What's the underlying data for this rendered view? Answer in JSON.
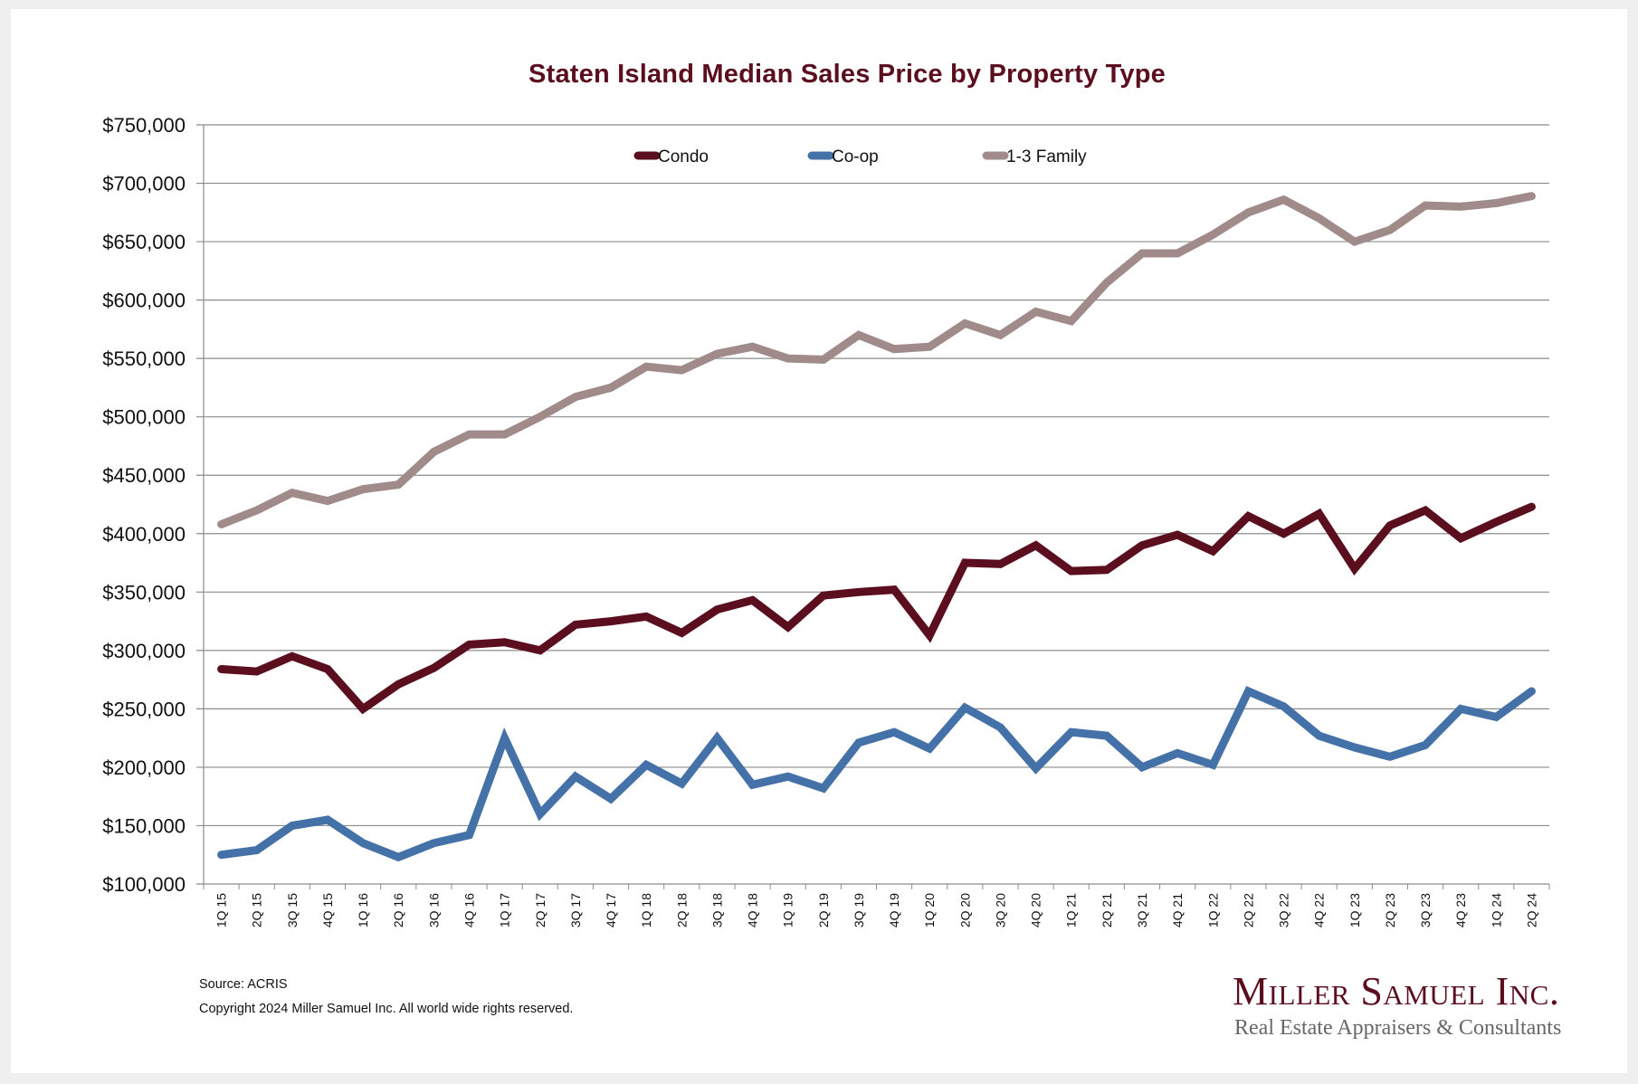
{
  "chart_data": {
    "type": "line",
    "title": "Staten Island Median Sales Price by Property Type",
    "xlabel": "",
    "ylabel": "",
    "ylim": [
      100000,
      750000
    ],
    "y_ticks": [
      100000,
      150000,
      200000,
      250000,
      300000,
      350000,
      400000,
      450000,
      500000,
      550000,
      600000,
      650000,
      700000,
      750000
    ],
    "y_tick_labels": [
      "$100,000",
      "$150,000",
      "$200,000",
      "$250,000",
      "$300,000",
      "$350,000",
      "$400,000",
      "$450,000",
      "$500,000",
      "$550,000",
      "$600,000",
      "$650,000",
      "$700,000",
      "$750,000"
    ],
    "grid": true,
    "legend_position": "top-center",
    "categories": [
      "1Q 15",
      "2Q 15",
      "3Q 15",
      "4Q 15",
      "1Q 16",
      "2Q 16",
      "3Q 16",
      "4Q 16",
      "1Q 17",
      "2Q 17",
      "3Q 17",
      "4Q 17",
      "1Q 18",
      "2Q 18",
      "3Q 18",
      "4Q 18",
      "1Q 19",
      "2Q 19",
      "3Q 19",
      "4Q 19",
      "1Q 20",
      "2Q 20",
      "3Q 20",
      "4Q 20",
      "1Q 21",
      "2Q 21",
      "3Q 21",
      "4Q 21",
      "1Q 22",
      "2Q 22",
      "3Q 22",
      "4Q 22",
      "1Q 23",
      "2Q 23",
      "3Q 23",
      "4Q 23",
      "1Q 24",
      "2Q 24"
    ],
    "series": [
      {
        "name": "Condo",
        "color": "#5b0f1e",
        "values": [
          284000,
          282000,
          295000,
          284000,
          250000,
          271000,
          285000,
          305000,
          307000,
          300000,
          322000,
          325000,
          329000,
          315000,
          335000,
          343000,
          320000,
          347000,
          350000,
          352000,
          313000,
          375000,
          374000,
          390000,
          368000,
          369000,
          390000,
          399000,
          385000,
          415000,
          400000,
          417000,
          370000,
          407000,
          420000,
          396000,
          410000,
          423000
        ]
      },
      {
        "name": "Co-op",
        "color": "#4472a8",
        "values": [
          125000,
          129000,
          150000,
          155000,
          135000,
          123000,
          135000,
          142000,
          225000,
          160000,
          192000,
          173000,
          202000,
          186000,
          225000,
          185000,
          192000,
          182000,
          221000,
          230000,
          216000,
          251000,
          234000,
          199000,
          230000,
          227000,
          200000,
          212000,
          202000,
          265000,
          252000,
          227000,
          217000,
          209000,
          219000,
          250000,
          243000,
          265000
        ]
      },
      {
        "name": "1-3 Family",
        "color": "#a08a8a",
        "values": [
          408000,
          420000,
          435000,
          428000,
          438000,
          442000,
          470000,
          485000,
          485000,
          500000,
          517000,
          525000,
          543000,
          540000,
          554000,
          560000,
          550000,
          549000,
          570000,
          558000,
          560000,
          580000,
          570000,
          590000,
          582000,
          615000,
          640000,
          640000,
          656000,
          675000,
          686000,
          670000,
          650000,
          660000,
          681000,
          680000,
          683000,
          689000
        ]
      }
    ]
  },
  "footer": {
    "source": "Source: ACRIS",
    "copyright": "Copyright 2024 Miller Samuel Inc.  All world wide rights reserved."
  },
  "logo": {
    "name": "Miller Samuel Inc.",
    "tagline": "Real Estate Appraisers & Consultants"
  }
}
